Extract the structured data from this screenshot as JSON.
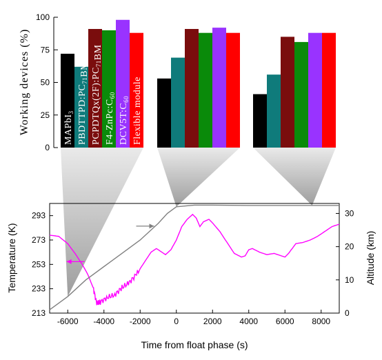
{
  "chart_data": [
    {
      "type": "bar",
      "ylabel": "Working devices (%)",
      "ylim": [
        0,
        100
      ],
      "yticks": [
        0,
        25,
        50,
        75,
        100
      ],
      "series": [
        {
          "name": "MAPbI3",
          "label_parts": [
            [
              "MAPbI",
              ""
            ],
            [
              "3",
              "sub"
            ]
          ],
          "color": "#000000",
          "values": [
            72,
            53,
            41
          ]
        },
        {
          "name": "PBDTTPD:PC71BM",
          "label_parts": [
            [
              "PBDTTPD:PC",
              ""
            ],
            [
              "71",
              "sub"
            ],
            [
              "BM",
              ""
            ]
          ],
          "color": "#0f7b7b",
          "values": [
            62,
            69,
            56
          ]
        },
        {
          "name": "PCPDTQx(2F):PC71BM",
          "label_parts": [
            [
              "PCPDTQx(2F):PC",
              ""
            ],
            [
              "71",
              "sub"
            ],
            [
              "BM",
              ""
            ]
          ],
          "color": "#7a0d0d",
          "values": [
            91,
            91,
            85
          ]
        },
        {
          "name": "F4-ZnPc:C60",
          "label_parts": [
            [
              "F4-ZnPc:C",
              ""
            ],
            [
              "60",
              "sub"
            ]
          ],
          "color": "#0a8a0a",
          "values": [
            90,
            88,
            81
          ]
        },
        {
          "name": "DCV5T:C60",
          "label_parts": [
            [
              "DCV5T:C",
              ""
            ],
            [
              "60",
              "sub"
            ]
          ],
          "color": "#9933ff",
          "values": [
            98,
            92,
            88
          ]
        },
        {
          "name": "Flexible module",
          "label_parts": [
            [
              "Flexible module",
              ""
            ]
          ],
          "color": "#ff0000",
          "values": [
            88,
            88,
            88
          ]
        }
      ]
    },
    {
      "type": "line",
      "xlabel": "Time from float phase (s)",
      "ylabel_left": "Temperature (K)",
      "ylabel_right": "Altitude (km)",
      "xlim": [
        -7000,
        9000
      ],
      "xticks": [
        -6000,
        -4000,
        -2000,
        0,
        2000,
        4000,
        6000,
        8000
      ],
      "ylim_left": [
        213,
        303
      ],
      "yticks_left": [
        213,
        233,
        253,
        273,
        293
      ],
      "ylim_right": [
        0,
        33
      ],
      "yticks_right": [
        0,
        10,
        20,
        30
      ],
      "series": [
        {
          "name": "Temperature",
          "axis": "left",
          "color": "#ff00ff",
          "x": [
            -7000,
            -6500,
            -6000,
            -5600,
            -5200,
            -4900,
            -4600,
            -4400,
            -4200,
            -3800,
            -3400,
            -3000,
            -2600,
            -2200,
            -1800,
            -1400,
            -1100,
            -900,
            -600,
            -300,
            0,
            300,
            600,
            900,
            1100,
            1300,
            1500,
            1800,
            2000,
            2400,
            2800,
            3200,
            3600,
            3800,
            4000,
            4200,
            4600,
            5000,
            5400,
            5800,
            6000,
            6200,
            6600,
            7000,
            7400,
            7800,
            8200,
            8600,
            9000
          ],
          "y": [
            277,
            276,
            270,
            262,
            253,
            245,
            234,
            221,
            222,
            226,
            228,
            234,
            238,
            245,
            254,
            263,
            266,
            264,
            261,
            265,
            273,
            284,
            290,
            294,
            291,
            284,
            288,
            290,
            287,
            280,
            271,
            262,
            259,
            260,
            265,
            266,
            263,
            261,
            262,
            260,
            259,
            262,
            270,
            271,
            273,
            276,
            280,
            284,
            286
          ]
        },
        {
          "name": "Altitude",
          "axis": "right",
          "color": "#808080",
          "x": [
            -7000,
            -6000,
            -5000,
            -4000,
            -3000,
            -2000,
            -1000,
            -500,
            0,
            1000,
            2000,
            4000,
            6000,
            8000,
            9000
          ],
          "y": [
            1,
            5,
            10,
            14,
            18,
            22,
            27,
            30,
            32,
            32.5,
            32.5,
            32.4,
            32.4,
            32.4,
            32.4
          ]
        }
      ],
      "arrows": [
        {
          "points_to": "left",
          "color": "#ff00ff",
          "at_x": -5300
        },
        {
          "points_to": "right",
          "color": "#808080",
          "at_x": -1000
        }
      ],
      "zoom_regions": [
        {
          "group": 0,
          "x": -6000
        },
        {
          "group": 1,
          "x": 0
        },
        {
          "group": 2,
          "x": 7500
        }
      ]
    }
  ]
}
